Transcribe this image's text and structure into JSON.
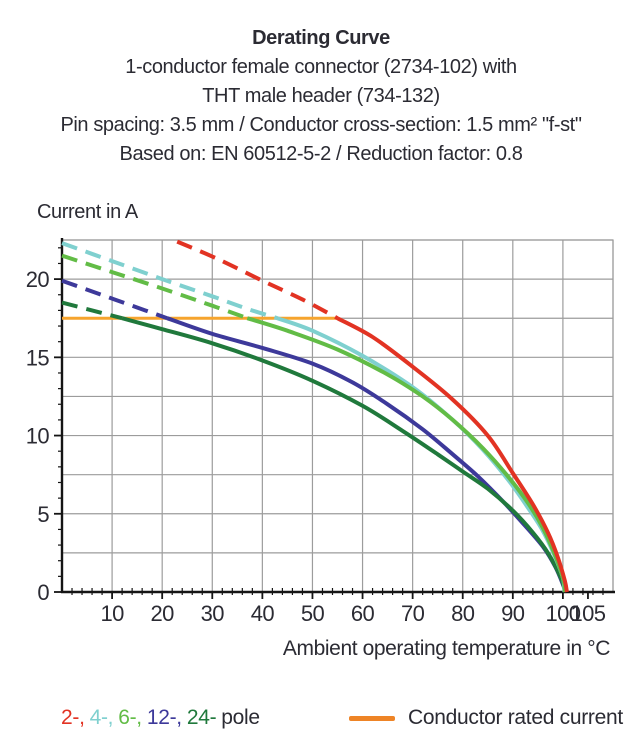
{
  "header": {
    "title": "Derating Curve",
    "subtitle_lines": [
      "1-conductor female connector (2734-102) with",
      "THT male header (734-132)",
      "Pin spacing: 3.5 mm / Conductor cross-section: 1.5 mm² \"f-st\"",
      "Based on: EN 60512-5-2 / Reduction factor: 0.8"
    ]
  },
  "chart_data": {
    "type": "line",
    "title": "Derating Curve",
    "ylabel": "Current in A",
    "xlabel": "Ambient operating temperature in °C",
    "xlim": [
      0,
      110
    ],
    "ylim": [
      0,
      22.5
    ],
    "x_grid_step": 10,
    "y_grid_step": 2.5,
    "x_minor_step": 2,
    "y_minor_step": 1,
    "x_major_ticks": [
      10,
      20,
      30,
      40,
      50,
      60,
      70,
      80,
      90,
      100,
      105
    ],
    "x_tick_labels": [
      "10",
      "20",
      "30",
      "40",
      "50",
      "60",
      "70",
      "80",
      "90",
      "100",
      "105"
    ],
    "y_major_ticks": [
      0,
      5,
      10,
      15,
      20
    ],
    "grid": true,
    "grid_color": "#9c9c9c",
    "axis_color": "#141414",
    "text_color": "#2b2b33",
    "legend_position": "bottom",
    "rated_current": {
      "label": "Conductor rated current",
      "value": 17.5,
      "x_start": 0,
      "x_end": 55,
      "color": "#f6a42d"
    },
    "dash_note": "curves are dashed above the conductor rated current (17.5 A) and solid below it",
    "draw_order": [
      "12-pole",
      "24-pole",
      "4-pole",
      "6-pole",
      "2-pole"
    ],
    "series": [
      {
        "name": "2-pole",
        "color": "#e23323",
        "dash_points": [
          [
            23,
            22.4
          ],
          [
            31,
            21.3
          ],
          [
            40,
            19.9
          ],
          [
            48,
            18.7
          ],
          [
            55,
            17.5
          ]
        ],
        "solid_points": [
          [
            55,
            17.5
          ],
          [
            62,
            16.3
          ],
          [
            70,
            14.4
          ],
          [
            78,
            12.3
          ],
          [
            85,
            10.0
          ],
          [
            90,
            7.6
          ],
          [
            94,
            5.6
          ],
          [
            97,
            3.8
          ],
          [
            99,
            2.2
          ],
          [
            100.4,
            0.7
          ],
          [
            100.8,
            0
          ]
        ]
      },
      {
        "name": "4-pole",
        "color": "#7fd0cf",
        "dash_points": [
          [
            0,
            22.3
          ],
          [
            10,
            21.15
          ],
          [
            20,
            20.0
          ],
          [
            30,
            18.9
          ],
          [
            37,
            18.1
          ],
          [
            43,
            17.5
          ]
        ],
        "solid_points": [
          [
            43,
            17.5
          ],
          [
            50,
            16.7
          ],
          [
            60,
            15.1
          ],
          [
            70,
            13.1
          ],
          [
            78,
            11.0
          ],
          [
            84,
            9.1
          ],
          [
            89,
            7.2
          ],
          [
            93,
            5.4
          ],
          [
            96,
            3.9
          ],
          [
            98.5,
            2.2
          ],
          [
            100,
            0.9
          ],
          [
            100.3,
            0
          ]
        ]
      },
      {
        "name": "6-pole",
        "color": "#62bc46",
        "dash_points": [
          [
            0,
            21.5
          ],
          [
            10,
            20.45
          ],
          [
            20,
            19.4
          ],
          [
            30,
            18.3
          ],
          [
            37,
            17.5
          ]
        ],
        "solid_points": [
          [
            37,
            17.5
          ],
          [
            45,
            16.7
          ],
          [
            55,
            15.5
          ],
          [
            65,
            13.9
          ],
          [
            72,
            12.5
          ],
          [
            78,
            11.0
          ],
          [
            84,
            9.2
          ],
          [
            89,
            7.4
          ],
          [
            93,
            5.7
          ],
          [
            96,
            4.1
          ],
          [
            98.5,
            2.3
          ],
          [
            100.1,
            0.8
          ],
          [
            100.4,
            0
          ]
        ]
      },
      {
        "name": "12-pole",
        "color": "#3d399a",
        "dash_points": [
          [
            0,
            19.9
          ],
          [
            7,
            19.1
          ],
          [
            14,
            18.3
          ],
          [
            21,
            17.5
          ]
        ],
        "solid_points": [
          [
            21,
            17.5
          ],
          [
            30,
            16.5
          ],
          [
            40,
            15.6
          ],
          [
            50,
            14.6
          ],
          [
            58,
            13.4
          ],
          [
            65,
            12.0
          ],
          [
            72,
            10.4
          ],
          [
            78,
            8.8
          ],
          [
            83,
            7.4
          ],
          [
            88,
            5.8
          ],
          [
            92,
            4.4
          ],
          [
            96,
            2.9
          ],
          [
            98.5,
            1.6
          ],
          [
            100.1,
            0.4
          ],
          [
            100.4,
            0
          ]
        ]
      },
      {
        "name": "24-pole",
        "color": "#20793c",
        "dash_points": [
          [
            0,
            18.5
          ],
          [
            6,
            18.0
          ],
          [
            12,
            17.5
          ]
        ],
        "solid_points": [
          [
            12,
            17.5
          ],
          [
            20,
            16.8
          ],
          [
            30,
            15.9
          ],
          [
            40,
            14.8
          ],
          [
            50,
            13.5
          ],
          [
            60,
            11.9
          ],
          [
            68,
            10.3
          ],
          [
            75,
            8.8
          ],
          [
            80,
            7.7
          ],
          [
            85,
            6.6
          ],
          [
            90,
            5.2
          ],
          [
            94,
            3.8
          ],
          [
            97,
            2.5
          ],
          [
            99.6,
            0.9
          ],
          [
            100.5,
            0
          ]
        ]
      }
    ]
  },
  "legend": {
    "pole_items": [
      {
        "label": "2-,",
        "color": "#e23323"
      },
      {
        "label": "4-,",
        "color": "#7fd0cf"
      },
      {
        "label": "6-,",
        "color": "#62bc46"
      },
      {
        "label": "12-,",
        "color": "#3d399a"
      },
      {
        "label": "24-",
        "color": "#20793c"
      }
    ],
    "pole_suffix": "pole",
    "rated_swatch_color": "#ee8426",
    "rated_label": "Conductor rated current"
  }
}
